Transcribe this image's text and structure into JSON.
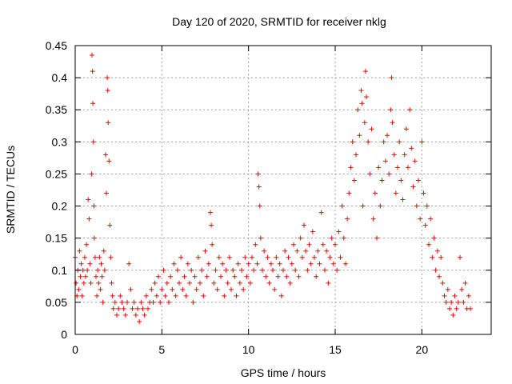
{
  "chart_data": {
    "type": "scatter",
    "title": "Day 120 of 2020, SRMTID for receiver nklg",
    "xlabel": "GPS time / hours",
    "ylabel": "SRMTID / TECUs",
    "xlim": [
      0,
      24
    ],
    "ylim": [
      0,
      0.45
    ],
    "xticks": [
      0,
      5,
      10,
      15,
      20
    ],
    "xtick_labels": [
      "0",
      "5",
      "10",
      "15",
      "20"
    ],
    "yticks": [
      0,
      0.05,
      0.1,
      0.15,
      0.2,
      0.25,
      0.3,
      0.35,
      0.4,
      0.45
    ],
    "ytick_labels": [
      "0",
      "0.05",
      "0.1",
      "0.15",
      "0.2",
      "0.25",
      "0.3",
      "0.35",
      "0.4",
      "0.45"
    ],
    "grid": true,
    "marker": "plus",
    "marker_color": "#ff0000",
    "series": [
      {
        "name": "SRMTID",
        "points": [
          [
            0.0,
            0.12
          ],
          [
            0.05,
            0.08
          ],
          [
            0.1,
            0.06
          ],
          [
            0.15,
            0.1
          ],
          [
            0.2,
            0.07
          ],
          [
            0.25,
            0.13
          ],
          [
            0.3,
            0.09
          ],
          [
            0.35,
            0.11
          ],
          [
            0.4,
            0.06
          ],
          [
            0.45,
            0.1
          ],
          [
            0.5,
            0.08
          ],
          [
            0.55,
            0.12
          ],
          [
            0.6,
            0.09
          ],
          [
            0.65,
            0.14
          ],
          [
            0.7,
            0.1
          ],
          [
            0.75,
            0.21
          ],
          [
            0.8,
            0.18
          ],
          [
            0.85,
            0.11
          ],
          [
            0.9,
            0.08
          ],
          [
            0.95,
            0.25
          ],
          [
            0.97,
            0.435
          ],
          [
            1.0,
            0.41
          ],
          [
            1.02,
            0.36
          ],
          [
            1.05,
            0.3
          ],
          [
            1.08,
            0.2
          ],
          [
            1.1,
            0.15
          ],
          [
            1.15,
            0.12
          ],
          [
            1.2,
            0.09
          ],
          [
            1.25,
            0.06
          ],
          [
            1.3,
            0.1
          ],
          [
            1.35,
            0.08
          ],
          [
            1.4,
            0.12
          ],
          [
            1.45,
            0.07
          ],
          [
            1.5,
            0.11
          ],
          [
            1.55,
            0.09
          ],
          [
            1.6,
            0.05
          ],
          [
            1.65,
            0.13
          ],
          [
            1.7,
            0.1
          ],
          [
            1.75,
            0.28
          ],
          [
            1.8,
            0.22
          ],
          [
            1.85,
            0.4
          ],
          [
            1.88,
            0.38
          ],
          [
            1.9,
            0.33
          ],
          [
            1.95,
            0.27
          ],
          [
            2.0,
            0.17
          ],
          [
            2.05,
            0.12
          ],
          [
            2.1,
            0.08
          ],
          [
            2.15,
            0.06
          ],
          [
            2.2,
            0.04
          ],
          [
            2.3,
            0.05
          ],
          [
            2.4,
            0.03
          ],
          [
            2.5,
            0.04
          ],
          [
            2.6,
            0.06
          ],
          [
            2.7,
            0.05
          ],
          [
            2.8,
            0.04
          ],
          [
            2.9,
            0.03
          ],
          [
            3.0,
            0.05
          ],
          [
            3.1,
            0.11
          ],
          [
            3.2,
            0.07
          ],
          [
            3.3,
            0.04
          ],
          [
            3.4,
            0.05
          ],
          [
            3.5,
            0.03
          ],
          [
            3.6,
            0.04
          ],
          [
            3.7,
            0.02
          ],
          [
            3.8,
            0.05
          ],
          [
            3.9,
            0.04
          ],
          [
            4.0,
            0.03
          ],
          [
            4.1,
            0.06
          ],
          [
            4.2,
            0.04
          ],
          [
            4.3,
            0.05
          ],
          [
            4.4,
            0.07
          ],
          [
            4.5,
            0.05
          ],
          [
            4.6,
            0.08
          ],
          [
            4.7,
            0.06
          ],
          [
            4.8,
            0.09
          ],
          [
            4.9,
            0.05
          ],
          [
            5.0,
            0.07
          ],
          [
            5.1,
            0.1
          ],
          [
            5.2,
            0.06
          ],
          [
            5.3,
            0.08
          ],
          [
            5.4,
            0.05
          ],
          [
            5.5,
            0.09
          ],
          [
            5.6,
            0.07
          ],
          [
            5.7,
            0.11
          ],
          [
            5.8,
            0.06
          ],
          [
            5.9,
            0.1
          ],
          [
            6.0,
            0.08
          ],
          [
            6.1,
            0.12
          ],
          [
            6.2,
            0.07
          ],
          [
            6.3,
            0.09
          ],
          [
            6.4,
            0.06
          ],
          [
            6.5,
            0.11
          ],
          [
            6.6,
            0.08
          ],
          [
            6.7,
            0.1
          ],
          [
            6.8,
            0.05
          ],
          [
            6.9,
            0.09
          ],
          [
            7.0,
            0.07
          ],
          [
            7.1,
            0.12
          ],
          [
            7.2,
            0.08
          ],
          [
            7.3,
            0.1
          ],
          [
            7.4,
            0.06
          ],
          [
            7.5,
            0.13
          ],
          [
            7.6,
            0.09
          ],
          [
            7.7,
            0.11
          ],
          [
            7.8,
            0.19
          ],
          [
            7.85,
            0.17
          ],
          [
            7.9,
            0.14
          ],
          [
            8.0,
            0.08
          ],
          [
            8.1,
            0.1
          ],
          [
            8.2,
            0.07
          ],
          [
            8.3,
            0.12
          ],
          [
            8.4,
            0.09
          ],
          [
            8.5,
            0.11
          ],
          [
            8.6,
            0.06
          ],
          [
            8.7,
            0.1
          ],
          [
            8.8,
            0.08
          ],
          [
            8.9,
            0.12
          ],
          [
            9.0,
            0.07
          ],
          [
            9.1,
            0.1
          ],
          [
            9.2,
            0.09
          ],
          [
            9.3,
            0.06
          ],
          [
            9.4,
            0.11
          ],
          [
            9.5,
            0.08
          ],
          [
            9.6,
            0.1
          ],
          [
            9.7,
            0.07
          ],
          [
            9.8,
            0.12
          ],
          [
            9.9,
            0.09
          ],
          [
            10.0,
            0.11
          ],
          [
            10.1,
            0.08
          ],
          [
            10.2,
            0.12
          ],
          [
            10.3,
            0.1
          ],
          [
            10.4,
            0.14
          ],
          [
            10.5,
            0.11
          ],
          [
            10.55,
            0.25
          ],
          [
            10.6,
            0.23
          ],
          [
            10.65,
            0.2
          ],
          [
            10.7,
            0.15
          ],
          [
            10.8,
            0.1
          ],
          [
            10.9,
            0.13
          ],
          [
            11.0,
            0.09
          ],
          [
            11.1,
            0.12
          ],
          [
            11.2,
            0.08
          ],
          [
            11.3,
            0.11
          ],
          [
            11.4,
            0.1
          ],
          [
            11.5,
            0.07
          ],
          [
            11.6,
            0.12
          ],
          [
            11.7,
            0.09
          ],
          [
            11.8,
            0.11
          ],
          [
            11.9,
            0.06
          ],
          [
            12.0,
            0.1
          ],
          [
            12.1,
            0.13
          ],
          [
            12.2,
            0.09
          ],
          [
            12.3,
            0.12
          ],
          [
            12.4,
            0.08
          ],
          [
            12.5,
            0.11
          ],
          [
            12.6,
            0.14
          ],
          [
            12.7,
            0.1
          ],
          [
            12.8,
            0.13
          ],
          [
            12.9,
            0.09
          ],
          [
            13.0,
            0.15
          ],
          [
            13.1,
            0.12
          ],
          [
            13.2,
            0.17
          ],
          [
            13.3,
            0.13
          ],
          [
            13.4,
            0.1
          ],
          [
            13.5,
            0.14
          ],
          [
            13.6,
            0.11
          ],
          [
            13.7,
            0.16
          ],
          [
            13.8,
            0.12
          ],
          [
            13.9,
            0.09
          ],
          [
            14.0,
            0.13
          ],
          [
            14.1,
            0.11
          ],
          [
            14.2,
            0.19
          ],
          [
            14.3,
            0.14
          ],
          [
            14.4,
            0.1
          ],
          [
            14.5,
            0.13
          ],
          [
            14.6,
            0.08
          ],
          [
            14.7,
            0.12
          ],
          [
            14.8,
            0.15
          ],
          [
            14.9,
            0.11
          ],
          [
            15.0,
            0.14
          ],
          [
            15.1,
            0.1
          ],
          [
            15.2,
            0.16
          ],
          [
            15.3,
            0.12
          ],
          [
            15.4,
            0.2
          ],
          [
            15.5,
            0.15
          ],
          [
            15.6,
            0.11
          ],
          [
            15.7,
            0.18
          ],
          [
            15.8,
            0.22
          ],
          [
            15.9,
            0.26
          ],
          [
            16.0,
            0.3
          ],
          [
            16.1,
            0.24
          ],
          [
            16.2,
            0.28
          ],
          [
            16.3,
            0.35
          ],
          [
            16.4,
            0.31
          ],
          [
            16.5,
            0.38
          ],
          [
            16.55,
            0.36
          ],
          [
            16.6,
            0.2
          ],
          [
            16.7,
            0.33
          ],
          [
            16.75,
            0.41
          ],
          [
            16.8,
            0.37
          ],
          [
            16.9,
            0.3
          ],
          [
            17.0,
            0.25
          ],
          [
            17.1,
            0.32
          ],
          [
            17.2,
            0.18
          ],
          [
            17.3,
            0.22
          ],
          [
            17.4,
            0.15
          ],
          [
            17.5,
            0.26
          ],
          [
            17.6,
            0.2
          ],
          [
            17.7,
            0.24
          ],
          [
            17.8,
            0.3
          ],
          [
            17.9,
            0.27
          ],
          [
            18.0,
            0.31
          ],
          [
            18.1,
            0.25
          ],
          [
            18.2,
            0.35
          ],
          [
            18.25,
            0.4
          ],
          [
            18.3,
            0.33
          ],
          [
            18.4,
            0.28
          ],
          [
            18.5,
            0.22
          ],
          [
            18.6,
            0.26
          ],
          [
            18.7,
            0.3
          ],
          [
            18.8,
            0.24
          ],
          [
            18.9,
            0.21
          ],
          [
            19.0,
            0.28
          ],
          [
            19.1,
            0.32
          ],
          [
            19.2,
            0.26
          ],
          [
            19.3,
            0.35
          ],
          [
            19.4,
            0.29
          ],
          [
            19.5,
            0.23
          ],
          [
            19.6,
            0.27
          ],
          [
            19.7,
            0.2
          ],
          [
            19.8,
            0.24
          ],
          [
            19.9,
            0.18
          ],
          [
            20.0,
            0.3
          ],
          [
            20.1,
            0.22
          ],
          [
            20.2,
            0.17
          ],
          [
            20.3,
            0.2
          ],
          [
            20.4,
            0.14
          ],
          [
            20.5,
            0.18
          ],
          [
            20.6,
            0.12
          ],
          [
            20.7,
            0.15
          ],
          [
            20.8,
            0.1
          ],
          [
            20.9,
            0.13
          ],
          [
            21.0,
            0.09
          ],
          [
            21.1,
            0.12
          ],
          [
            21.2,
            0.08
          ],
          [
            21.3,
            0.06
          ],
          [
            21.4,
            0.05
          ],
          [
            21.5,
            0.07
          ],
          [
            21.6,
            0.04
          ],
          [
            21.7,
            0.05
          ],
          [
            21.8,
            0.03
          ],
          [
            21.9,
            0.06
          ],
          [
            22.0,
            0.04
          ],
          [
            22.1,
            0.05
          ],
          [
            22.2,
            0.12
          ],
          [
            22.3,
            0.07
          ],
          [
            22.4,
            0.05
          ],
          [
            22.5,
            0.08
          ],
          [
            22.6,
            0.04
          ],
          [
            22.7,
            0.06
          ],
          [
            22.8,
            0.04
          ]
        ]
      }
    ]
  }
}
